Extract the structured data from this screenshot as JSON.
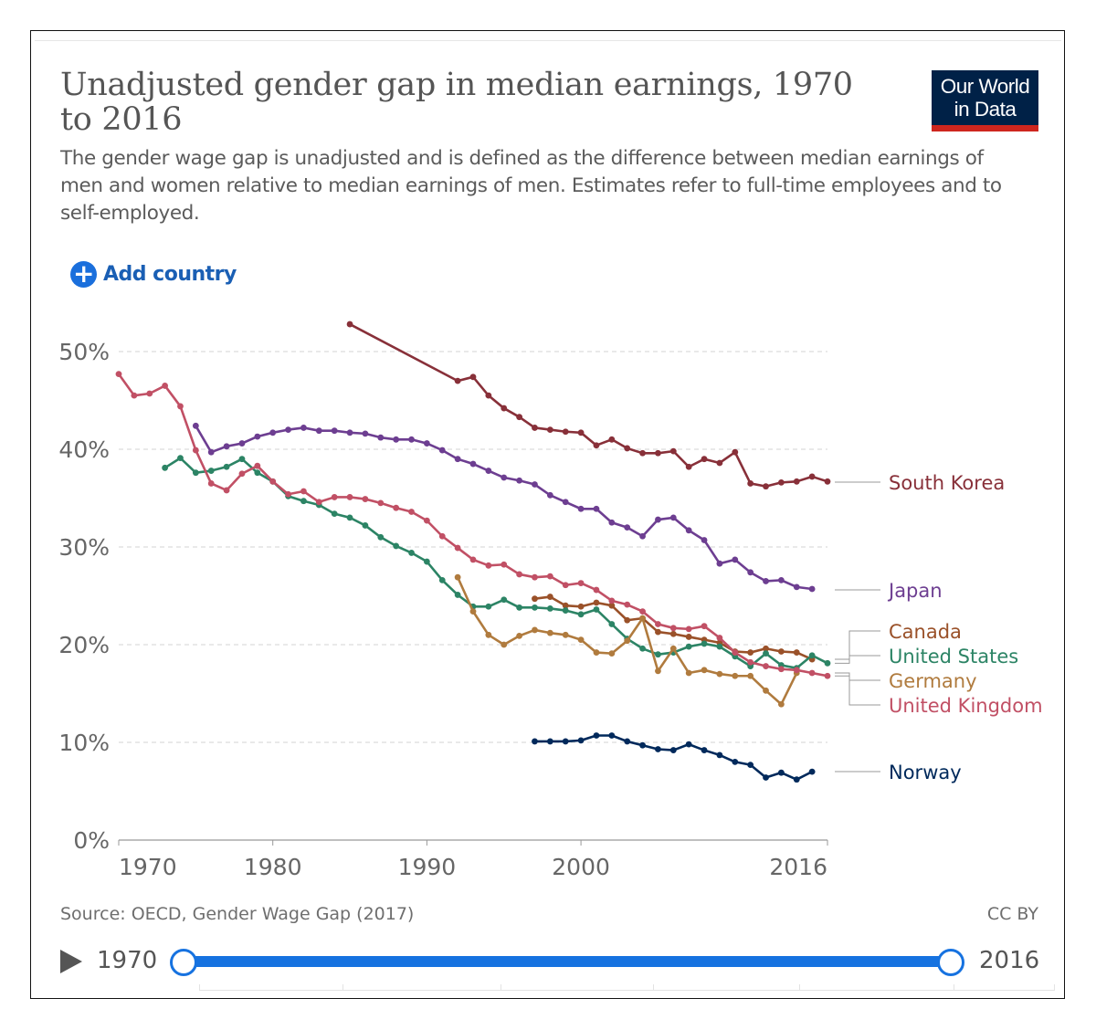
{
  "header": {
    "title": "Unadjusted gender gap in median earnings, 1970 to 2016",
    "subtitle": "The gender wage gap is unadjusted and is defined as the difference between median earnings of men and women relative to median earnings of men. Estimates refer to full-time employees and to self-employed.",
    "logo_line1": "Our World",
    "logo_line2": "in Data"
  },
  "controls": {
    "add_country": "Add country",
    "add_icon": "plus-circle-icon"
  },
  "footer": {
    "source": "Source: OECD, Gender Wage Gap (2017)",
    "license": "CC BY",
    "timeline_start": "1970",
    "timeline_end": "2016",
    "play_icon": "play-icon"
  },
  "chart_data": {
    "type": "line",
    "title": "Unadjusted gender gap in median earnings, 1970 to 2016",
    "xlim": [
      1970,
      2016
    ],
    "ylim": [
      0,
      50
    ],
    "x_ticks": [
      "1970",
      "1980",
      "1990",
      "2000",
      "2016"
    ],
    "x_tick_values": [
      1970,
      1980,
      1990,
      2000,
      2016
    ],
    "y_ticks": [
      "0%",
      "10%",
      "20%",
      "30%",
      "40%",
      "50%"
    ],
    "y_tick_values": [
      0,
      10,
      20,
      30,
      40,
      50
    ],
    "grid": "horizontal dashed",
    "legend": "right (line end labels)",
    "series": [
      {
        "name": "South Korea",
        "color": "#883039",
        "x": [
          1985,
          1992,
          1993,
          1994,
          1995,
          1996,
          1997,
          1998,
          1999,
          2000,
          2001,
          2002,
          2003,
          2004,
          2005,
          2006,
          2007,
          2008,
          2009,
          2010,
          2011,
          2012,
          2013,
          2014,
          2015,
          2016
        ],
        "y": [
          52.8,
          47.0,
          47.4,
          45.5,
          44.2,
          43.3,
          42.2,
          42.0,
          41.8,
          41.7,
          40.4,
          41.0,
          40.1,
          39.6,
          39.6,
          39.8,
          38.2,
          39.0,
          38.6,
          39.7,
          36.5,
          36.2,
          36.6,
          36.7,
          37.2,
          36.7
        ]
      },
      {
        "name": "Japan",
        "color": "#6d3e91",
        "x": [
          1975,
          1976,
          1977,
          1978,
          1979,
          1980,
          1981,
          1982,
          1983,
          1984,
          1985,
          1986,
          1987,
          1988,
          1989,
          1990,
          1991,
          1992,
          1993,
          1994,
          1995,
          1996,
          1997,
          1998,
          1999,
          2000,
          2001,
          2002,
          2003,
          2004,
          2005,
          2006,
          2007,
          2008,
          2009,
          2010,
          2011,
          2012,
          2013,
          2014,
          2015
        ],
        "y": [
          42.4,
          39.7,
          40.3,
          40.6,
          41.3,
          41.7,
          42.0,
          42.2,
          41.9,
          41.9,
          41.7,
          41.6,
          41.2,
          41.0,
          41.0,
          40.6,
          39.9,
          39.0,
          38.5,
          37.8,
          37.1,
          36.8,
          36.4,
          35.3,
          34.6,
          33.9,
          33.9,
          32.5,
          32.0,
          31.1,
          32.8,
          33.0,
          31.7,
          30.7,
          28.3,
          28.7,
          27.4,
          26.5,
          26.6,
          25.9,
          25.7
        ]
      },
      {
        "name": "Canada",
        "color": "#9a5129",
        "x": [
          1997,
          1998,
          1999,
          2000,
          2001,
          2002,
          2003,
          2004,
          2005,
          2006,
          2007,
          2008,
          2009,
          2010,
          2011,
          2012,
          2013,
          2014,
          2015
        ],
        "y": [
          24.7,
          24.9,
          24.0,
          23.9,
          24.3,
          24.0,
          22.5,
          22.7,
          21.3,
          21.1,
          20.8,
          20.5,
          20.2,
          19.3,
          19.2,
          19.6,
          19.3,
          19.2,
          18.5
        ]
      },
      {
        "name": "United States",
        "color": "#2c8465",
        "x": [
          1973,
          1974,
          1975,
          1976,
          1977,
          1978,
          1979,
          1980,
          1981,
          1982,
          1983,
          1984,
          1985,
          1986,
          1987,
          1988,
          1989,
          1990,
          1991,
          1992,
          1993,
          1994,
          1995,
          1996,
          1997,
          1998,
          1999,
          2000,
          2001,
          2002,
          2003,
          2004,
          2005,
          2006,
          2007,
          2008,
          2009,
          2010,
          2011,
          2012,
          2013,
          2014,
          2015,
          2016
        ],
        "y": [
          38.1,
          39.1,
          37.6,
          37.8,
          38.2,
          39.0,
          37.6,
          36.7,
          35.2,
          34.7,
          34.3,
          33.4,
          33.0,
          32.2,
          31.0,
          30.1,
          29.4,
          28.5,
          26.6,
          25.1,
          23.9,
          23.9,
          24.6,
          23.8,
          23.8,
          23.7,
          23.5,
          23.1,
          23.6,
          22.1,
          20.6,
          19.6,
          19.0,
          19.2,
          19.8,
          20.1,
          19.8,
          18.8,
          17.8,
          19.1,
          17.9,
          17.6,
          18.9,
          18.1
        ]
      },
      {
        "name": "Germany",
        "color": "#b07b3e",
        "x": [
          1992,
          1993,
          1994,
          1995,
          1996,
          1997,
          1998,
          1999,
          2000,
          2001,
          2002,
          2003,
          2004,
          2005,
          2006,
          2007,
          2008,
          2009,
          2010,
          2011,
          2012,
          2013,
          2014
        ],
        "y": [
          26.9,
          23.4,
          21.0,
          20.0,
          20.9,
          21.5,
          21.2,
          21.0,
          20.5,
          19.2,
          19.1,
          20.4,
          22.7,
          17.3,
          19.6,
          17.1,
          17.4,
          17.0,
          16.8,
          16.8,
          15.3,
          13.9,
          17.1
        ]
      },
      {
        "name": "United Kingdom",
        "color": "#c15065",
        "x": [
          1970,
          1971,
          1972,
          1973,
          1974,
          1975,
          1976,
          1977,
          1978,
          1979,
          1980,
          1981,
          1982,
          1983,
          1984,
          1985,
          1986,
          1987,
          1988,
          1989,
          1990,
          1991,
          1992,
          1993,
          1994,
          1995,
          1996,
          1997,
          1998,
          1999,
          2000,
          2001,
          2002,
          2003,
          2004,
          2005,
          2006,
          2007,
          2008,
          2009,
          2010,
          2011,
          2012,
          2013,
          2014,
          2015,
          2016
        ],
        "y": [
          47.7,
          45.5,
          45.7,
          46.5,
          44.4,
          39.9,
          36.5,
          35.8,
          37.5,
          38.3,
          36.7,
          35.4,
          35.7,
          34.6,
          35.1,
          35.1,
          34.9,
          34.5,
          34.0,
          33.6,
          32.7,
          31.1,
          29.9,
          28.7,
          28.1,
          28.2,
          27.2,
          26.9,
          27.0,
          26.1,
          26.3,
          25.6,
          24.5,
          24.1,
          23.4,
          22.1,
          21.7,
          21.6,
          21.9,
          20.7,
          19.2,
          18.2,
          17.8,
          17.5,
          17.4,
          17.1,
          16.8
        ]
      },
      {
        "name": "Norway",
        "color": "#00295b",
        "x": [
          1997,
          1998,
          1999,
          2000,
          2001,
          2002,
          2003,
          2004,
          2005,
          2006,
          2007,
          2008,
          2009,
          2010,
          2011,
          2012,
          2013,
          2014,
          2015
        ],
        "y": [
          10.1,
          10.1,
          10.1,
          10.2,
          10.7,
          10.7,
          10.1,
          9.7,
          9.3,
          9.2,
          9.8,
          9.2,
          8.7,
          8.0,
          7.7,
          6.4,
          6.9,
          6.2,
          7.0
        ]
      }
    ]
  }
}
